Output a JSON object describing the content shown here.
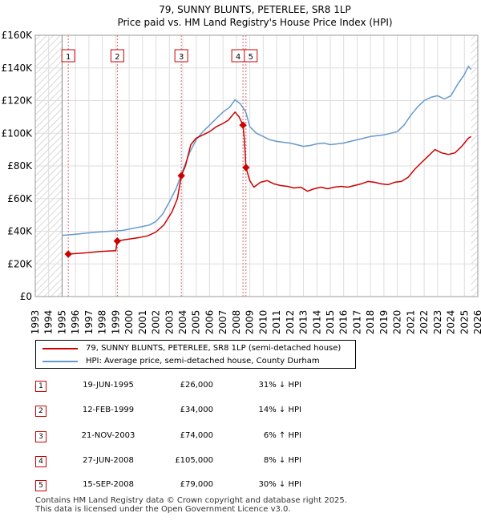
{
  "chart_data": {
    "type": "line",
    "title": "79, SUNNY BLUNTS, PETERLEE, SR8 1LP",
    "subtitle": "Price paid vs. HM Land Registry's House Price Index (HPI)",
    "xlabel": "",
    "ylabel": "",
    "xlim": [
      1993,
      2026
    ],
    "ylim": [
      0,
      160000
    ],
    "grid": true,
    "x_ticks": [
      1993,
      1994,
      1995,
      1996,
      1997,
      1998,
      1999,
      2000,
      2001,
      2002,
      2003,
      2004,
      2005,
      2006,
      2007,
      2008,
      2009,
      2010,
      2011,
      2012,
      2013,
      2014,
      2015,
      2016,
      2017,
      2018,
      2019,
      2020,
      2021,
      2022,
      2023,
      2024,
      2025,
      2026
    ],
    "y_ticks": [
      {
        "value": 0,
        "label": "£0"
      },
      {
        "value": 20000,
        "label": "£20K"
      },
      {
        "value": 40000,
        "label": "£40K"
      },
      {
        "value": 60000,
        "label": "£60K"
      },
      {
        "value": 80000,
        "label": "£80K"
      },
      {
        "value": 100000,
        "label": "£100K"
      },
      {
        "value": 120000,
        "label": "£120K"
      },
      {
        "value": 140000,
        "label": "£140K"
      },
      {
        "value": 160000,
        "label": "£160K"
      }
    ],
    "hatched_ranges": [
      [
        1993,
        1995.0
      ],
      [
        2025.5,
        2026
      ]
    ],
    "series": [
      {
        "name": "79, SUNNY BLUNTS, PETERLEE, SR8 1LP (semi-detached house)",
        "color": "#cc0000",
        "points": [
          [
            1995.46,
            26000
          ],
          [
            1995.8,
            26200
          ],
          [
            1996.3,
            26500
          ],
          [
            1996.8,
            26800
          ],
          [
            1997.3,
            27200
          ],
          [
            1997.8,
            27600
          ],
          [
            1998.4,
            27900
          ],
          [
            1999.0,
            28100
          ],
          [
            1999.12,
            34000
          ],
          [
            1999.6,
            34700
          ],
          [
            2000.2,
            35500
          ],
          [
            2000.8,
            36200
          ],
          [
            2001.4,
            37200
          ],
          [
            2002.0,
            39500
          ],
          [
            2002.6,
            44000
          ],
          [
            2003.2,
            52000
          ],
          [
            2003.6,
            60000
          ],
          [
            2003.89,
            74000
          ],
          [
            2004.2,
            80000
          ],
          [
            2004.6,
            93000
          ],
          [
            2005.0,
            97000
          ],
          [
            2005.5,
            99000
          ],
          [
            2006.0,
            101000
          ],
          [
            2006.5,
            104000
          ],
          [
            2007.0,
            106000
          ],
          [
            2007.4,
            108000
          ],
          [
            2007.9,
            113000
          ],
          [
            2008.2,
            110000
          ],
          [
            2008.49,
            105000
          ],
          [
            2008.6,
            96000
          ],
          [
            2008.71,
            79000
          ],
          [
            2009.0,
            71000
          ],
          [
            2009.3,
            67000
          ],
          [
            2009.8,
            70000
          ],
          [
            2010.3,
            71000
          ],
          [
            2010.8,
            69000
          ],
          [
            2011.3,
            68000
          ],
          [
            2011.8,
            67500
          ],
          [
            2012.3,
            66500
          ],
          [
            2012.8,
            67000
          ],
          [
            2013.3,
            64500
          ],
          [
            2013.8,
            66000
          ],
          [
            2014.3,
            67000
          ],
          [
            2014.8,
            66000
          ],
          [
            2015.3,
            67000
          ],
          [
            2015.8,
            67500
          ],
          [
            2016.3,
            67000
          ],
          [
            2016.8,
            68000
          ],
          [
            2017.3,
            69000
          ],
          [
            2017.8,
            70500
          ],
          [
            2018.3,
            70000
          ],
          [
            2018.8,
            69000
          ],
          [
            2019.3,
            68500
          ],
          [
            2019.8,
            70000
          ],
          [
            2020.3,
            70500
          ],
          [
            2020.8,
            73000
          ],
          [
            2021.3,
            78000
          ],
          [
            2021.8,
            82000
          ],
          [
            2022.3,
            86000
          ],
          [
            2022.8,
            90000
          ],
          [
            2023.3,
            88000
          ],
          [
            2023.8,
            87000
          ],
          [
            2024.3,
            88000
          ],
          [
            2024.8,
            92000
          ],
          [
            2025.3,
            97000
          ],
          [
            2025.5,
            98000
          ]
        ]
      },
      {
        "name": "HPI: Average price, semi-detached house, County Durham",
        "color": "#6699cc",
        "points": [
          [
            1995.0,
            37500
          ],
          [
            1995.5,
            37800
          ],
          [
            1996.0,
            38200
          ],
          [
            1996.5,
            38600
          ],
          [
            1997.0,
            39000
          ],
          [
            1997.5,
            39400
          ],
          [
            1998.0,
            39700
          ],
          [
            1998.5,
            40000
          ],
          [
            1999.0,
            40200
          ],
          [
            1999.5,
            40500
          ],
          [
            2000.0,
            41300
          ],
          [
            2000.5,
            42100
          ],
          [
            2001.0,
            42900
          ],
          [
            2001.5,
            43800
          ],
          [
            2002.0,
            46000
          ],
          [
            2002.5,
            50500
          ],
          [
            2003.0,
            58000
          ],
          [
            2003.5,
            66000
          ],
          [
            2004.0,
            77000
          ],
          [
            2004.5,
            88000
          ],
          [
            2005.0,
            96000
          ],
          [
            2005.5,
            101000
          ],
          [
            2006.0,
            105000
          ],
          [
            2006.5,
            109000
          ],
          [
            2007.0,
            113000
          ],
          [
            2007.5,
            116000
          ],
          [
            2007.9,
            120500
          ],
          [
            2008.3,
            118000
          ],
          [
            2008.7,
            113000
          ],
          [
            2009.0,
            104000
          ],
          [
            2009.5,
            100000
          ],
          [
            2010.0,
            98000
          ],
          [
            2010.5,
            96000
          ],
          [
            2011.0,
            95000
          ],
          [
            2011.5,
            94500
          ],
          [
            2012.0,
            94000
          ],
          [
            2012.5,
            93000
          ],
          [
            2013.0,
            92000
          ],
          [
            2013.5,
            92500
          ],
          [
            2014.0,
            93500
          ],
          [
            2014.5,
            94000
          ],
          [
            2015.0,
            93000
          ],
          [
            2015.5,
            93500
          ],
          [
            2016.0,
            94000
          ],
          [
            2016.5,
            95000
          ],
          [
            2017.0,
            96000
          ],
          [
            2017.5,
            97000
          ],
          [
            2018.0,
            98000
          ],
          [
            2018.5,
            98500
          ],
          [
            2019.0,
            99000
          ],
          [
            2019.5,
            100000
          ],
          [
            2020.0,
            101000
          ],
          [
            2020.5,
            105000
          ],
          [
            2021.0,
            111000
          ],
          [
            2021.5,
            116000
          ],
          [
            2022.0,
            120000
          ],
          [
            2022.5,
            122000
          ],
          [
            2023.0,
            123000
          ],
          [
            2023.5,
            121000
          ],
          [
            2024.0,
            123000
          ],
          [
            2024.5,
            130000
          ],
          [
            2025.0,
            136000
          ],
          [
            2025.3,
            141000
          ],
          [
            2025.5,
            139000
          ]
        ]
      }
    ],
    "transactions": [
      {
        "id": "1",
        "x": 1995.46,
        "value": 26000
      },
      {
        "id": "2",
        "x": 1999.12,
        "value": 34000
      },
      {
        "id": "3",
        "x": 2003.89,
        "value": 74000
      },
      {
        "id": "4",
        "x": 2008.49,
        "value": 105000
      },
      {
        "id": "5",
        "x": 2008.71,
        "value": 79000
      }
    ]
  },
  "legend": {
    "property_label": "79, SUNNY BLUNTS, PETERLEE, SR8 1LP (semi-detached house)",
    "hpi_label": "HPI: Average price, semi-detached house, County Durham",
    "property_color": "#cc0000",
    "hpi_color": "#6699cc"
  },
  "table": {
    "rows": [
      {
        "num": "1",
        "date": "19-JUN-1995",
        "price": "£26,000",
        "hpi": "31% ↓ HPI"
      },
      {
        "num": "2",
        "date": "12-FEB-1999",
        "price": "£34,000",
        "hpi": "14% ↓ HPI"
      },
      {
        "num": "3",
        "date": "21-NOV-2003",
        "price": "£74,000",
        "hpi": "6% ↑ HPI"
      },
      {
        "num": "4",
        "date": "27-JUN-2008",
        "price": "£105,000",
        "hpi": "8% ↓ HPI"
      },
      {
        "num": "5",
        "date": "15-SEP-2008",
        "price": "£79,000",
        "hpi": "30% ↓ HPI"
      }
    ]
  },
  "footer": {
    "line1": "Contains HM Land Registry data © Crown copyright and database right 2025.",
    "line2": "This data is licensed under the Open Government Licence v3.0."
  }
}
